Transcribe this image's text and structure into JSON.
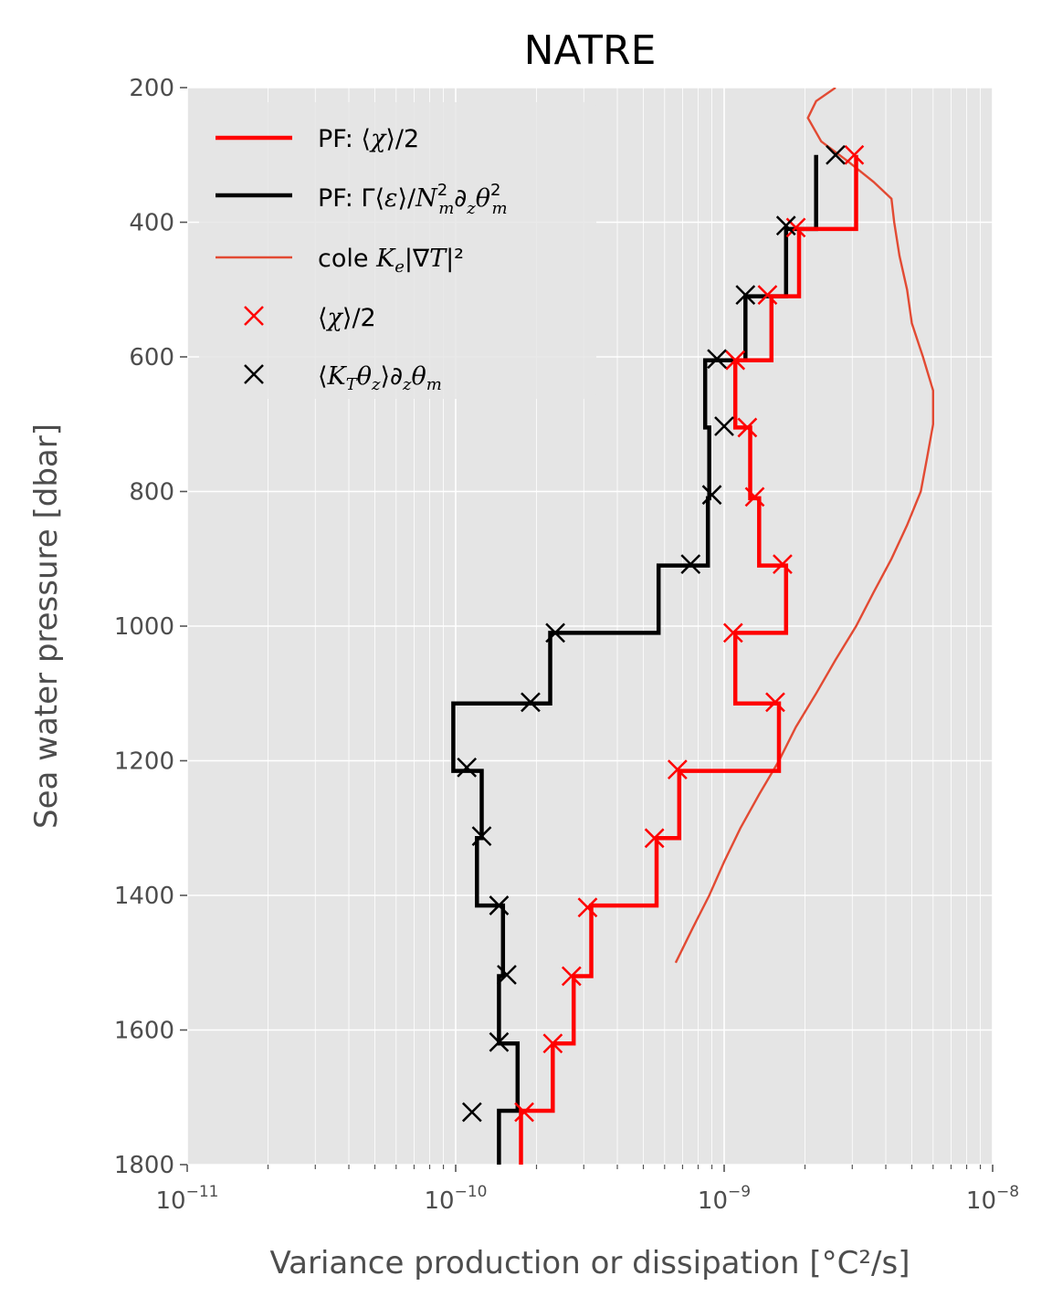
{
  "chart_data": {
    "type": "line",
    "title": "NATRE",
    "xlabel": "Variance production or dissipation [°C²/s]",
    "ylabel": "Sea water pressure [dbar]",
    "xscale": "log",
    "xlim": [
      1e-11,
      1e-08
    ],
    "ylim": [
      1800,
      200
    ],
    "y_inverted": true,
    "grid": true,
    "legend_position": "top-left",
    "x_ticks": [
      {
        "value": 1e-11,
        "base": "10",
        "exp": "−11"
      },
      {
        "value": 1e-10,
        "base": "10",
        "exp": "−10"
      },
      {
        "value": 1e-09,
        "base": "10",
        "exp": "−9"
      },
      {
        "value": 1e-08,
        "base": "10",
        "exp": "−8"
      }
    ],
    "y_ticks": [
      {
        "value": 200,
        "label": "200"
      },
      {
        "value": 400,
        "label": "400"
      },
      {
        "value": 600,
        "label": "600"
      },
      {
        "value": 800,
        "label": "800"
      },
      {
        "value": 1000,
        "label": "1000"
      },
      {
        "value": 1200,
        "label": "1200"
      },
      {
        "value": 1400,
        "label": "1400"
      },
      {
        "value": 1600,
        "label": "1600"
      },
      {
        "value": 1800,
        "label": "1800"
      }
    ],
    "bin_edges": [
      300,
      410,
      510,
      605,
      705,
      810,
      910,
      1010,
      1115,
      1215,
      1315,
      1415,
      1520,
      1620,
      1720,
      1820
    ],
    "series": [
      {
        "id": "pf_chi",
        "kind": "step",
        "name": "PF: ⟨χ⟩/2",
        "color": "#ff0000",
        "x": [
          3.1e-09,
          1.9e-09,
          1.5e-09,
          1.1e-09,
          1.25e-09,
          1.35e-09,
          1.7e-09,
          1.1e-09,
          1.6e-09,
          6.8e-10,
          5.6e-10,
          3.2e-10,
          2.75e-10,
          2.3e-10,
          1.75e-10
        ]
      },
      {
        "id": "pf_gamma",
        "kind": "step",
        "name": "PF: Γ⟨ε⟩/N²ₘ∂zθ²ₘ",
        "color": "#000000",
        "x": [
          2.2e-09,
          1.7e-09,
          1.2e-09,
          8.5e-10,
          8.8e-10,
          8.7e-10,
          5.7e-10,
          2.25e-10,
          9.8e-11,
          1.25e-10,
          1.2e-10,
          1.5e-10,
          1.45e-10,
          1.7e-10,
          1.45e-10
        ]
      },
      {
        "id": "cole",
        "kind": "line",
        "name": "cole Ke|∇T|²",
        "color": "#e24a33",
        "points": [
          [
            2.6e-09,
            200
          ],
          [
            2.2e-09,
            220
          ],
          [
            2.05e-09,
            245
          ],
          [
            2.3e-09,
            280
          ],
          [
            2.9e-09,
            310
          ],
          [
            3.6e-09,
            340
          ],
          [
            4.2e-09,
            365
          ],
          [
            4.3e-09,
            400
          ],
          [
            4.5e-09,
            450
          ],
          [
            4.8e-09,
            500
          ],
          [
            5e-09,
            550
          ],
          [
            5.5e-09,
            600
          ],
          [
            6e-09,
            650
          ],
          [
            6e-09,
            700
          ],
          [
            5.7e-09,
            750
          ],
          [
            5.4e-09,
            800
          ],
          [
            4.8e-09,
            850
          ],
          [
            4.2e-09,
            900
          ],
          [
            3.6e-09,
            950
          ],
          [
            3.1e-09,
            1000
          ],
          [
            2.6e-09,
            1050
          ],
          [
            2.2e-09,
            1100
          ],
          [
            1.85e-09,
            1150
          ],
          [
            1.6e-09,
            1200
          ],
          [
            1.35e-09,
            1250
          ],
          [
            1.15e-09,
            1300
          ],
          [
            1e-09,
            1350
          ],
          [
            8.8e-10,
            1400
          ],
          [
            7.6e-10,
            1450
          ],
          [
            6.6e-10,
            1500
          ]
        ]
      },
      {
        "id": "chi_obs",
        "kind": "scatter",
        "marker": "x",
        "name": "⟨χ⟩/2",
        "color": "#ff0000",
        "points": [
          [
            3.05e-09,
            300
          ],
          [
            1.85e-09,
            408
          ],
          [
            1.45e-09,
            508
          ],
          [
            1.1e-09,
            605
          ],
          [
            1.22e-09,
            705
          ],
          [
            1.3e-09,
            808
          ],
          [
            1.65e-09,
            908
          ],
          [
            1.08e-09,
            1010
          ],
          [
            1.55e-09,
            1113
          ],
          [
            6.7e-10,
            1213
          ],
          [
            5.5e-10,
            1315
          ],
          [
            3.1e-10,
            1418
          ],
          [
            2.7e-10,
            1520
          ],
          [
            2.3e-10,
            1620
          ],
          [
            1.8e-10,
            1722
          ]
        ]
      },
      {
        "id": "kt_obs",
        "kind": "scatter",
        "marker": "x",
        "name": "⟨KTθz⟩∂zθm",
        "color": "#000000",
        "points": [
          [
            2.6e-09,
            300
          ],
          [
            1.7e-09,
            405
          ],
          [
            1.2e-09,
            508
          ],
          [
            9.4e-10,
            603
          ],
          [
            1e-09,
            703
          ],
          [
            9e-10,
            805
          ],
          [
            7.5e-10,
            908
          ],
          [
            2.35e-10,
            1010
          ],
          [
            1.9e-10,
            1113
          ],
          [
            1.1e-10,
            1210
          ],
          [
            1.25e-10,
            1312
          ],
          [
            1.45e-10,
            1415
          ],
          [
            1.55e-10,
            1518
          ],
          [
            1.45e-10,
            1618
          ],
          [
            1.15e-10,
            1722
          ]
        ]
      }
    ],
    "legend": [
      {
        "series": "pf_chi",
        "label": "PF: ⟨χ⟩/2"
      },
      {
        "series": "pf_gamma",
        "label": "PF: Γ⟨ε⟩/N²ₘ∂zθ²ₘ"
      },
      {
        "series": "cole",
        "label": "cole Ke|∇T|²"
      },
      {
        "series": "chi_obs",
        "label": "⟨χ⟩/2"
      },
      {
        "series": "kt_obs",
        "label": "⟨KTθz⟩∂zθm"
      }
    ]
  },
  "colors": {
    "plot_background": "#e5e5e5",
    "grid": "#ffffff",
    "tick_text": "#4d4d4d"
  }
}
